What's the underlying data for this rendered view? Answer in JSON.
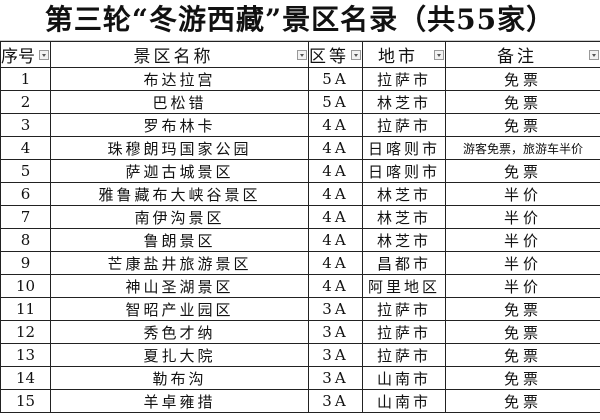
{
  "title": "第三轮“冬游西藏”景区名录（共55家）",
  "columns": [
    "序号",
    "景区名称",
    "区等",
    "地市",
    "备注"
  ],
  "rows": [
    [
      "1",
      "布达拉宫",
      "5A",
      "拉萨市",
      "免票"
    ],
    [
      "2",
      "巴松错",
      "5A",
      "林芝市",
      "免票"
    ],
    [
      "3",
      "罗布林卡",
      "4A",
      "拉萨市",
      "免票"
    ],
    [
      "4",
      "珠穆朗玛国家公园",
      "4A",
      "日喀则市",
      "游客免票，旅游车半价"
    ],
    [
      "5",
      "萨迦古城景区",
      "4A",
      "日喀则市",
      "免票"
    ],
    [
      "6",
      "雅鲁藏布大峡谷景区",
      "4A",
      "林芝市",
      "半价"
    ],
    [
      "7",
      "南伊沟景区",
      "4A",
      "林芝市",
      "半价"
    ],
    [
      "8",
      "鲁朗景区",
      "4A",
      "林芝市",
      "半价"
    ],
    [
      "9",
      "芒康盐井旅游景区",
      "4A",
      "昌都市",
      "半价"
    ],
    [
      "10",
      "神山圣湖景区",
      "4A",
      "阿里地区",
      "半价"
    ],
    [
      "11",
      "智昭产业园区",
      "3A",
      "拉萨市",
      "免票"
    ],
    [
      "12",
      "秀色才纳",
      "3A",
      "拉萨市",
      "免票"
    ],
    [
      "13",
      "夏扎大院",
      "3A",
      "拉萨市",
      "免票"
    ],
    [
      "14",
      "勒布沟",
      "3A",
      "山南市",
      "免票"
    ],
    [
      "15",
      "羊卓雍措",
      "3A",
      "山南市",
      "免票"
    ]
  ]
}
